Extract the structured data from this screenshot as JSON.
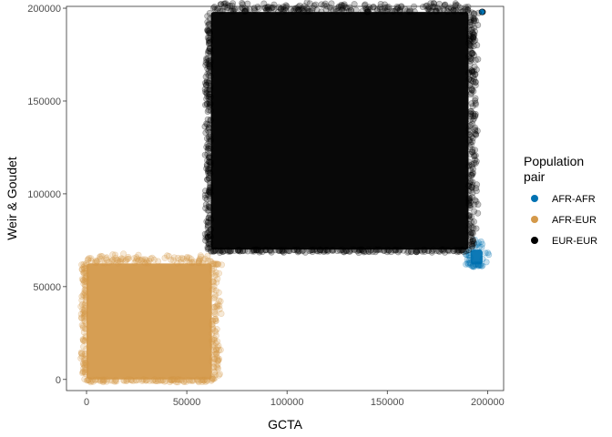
{
  "chart_data": {
    "type": "scatter",
    "title": "",
    "xlabel": "GCTA",
    "ylabel": "Weir & Goudet",
    "xlim": [
      -10000,
      208000
    ],
    "ylim": [
      -6000,
      201000
    ],
    "x_ticks": [
      0,
      50000,
      100000,
      150000,
      200000
    ],
    "y_ticks": [
      0,
      50000,
      100000,
      150000,
      200000
    ],
    "grid": false,
    "legend_position": "right",
    "legend_title": [
      "Population",
      "pair"
    ],
    "series": [
      {
        "name": "AFR-AFR",
        "color": "#0072B2",
        "regions": [
          {
            "x": [
              191500,
              197500
            ],
            "y": [
              62000,
              70000
            ]
          }
        ],
        "points": [
          {
            "x": 197500,
            "y": 198000
          },
          {
            "x": 197200,
            "y": 198000
          }
        ]
      },
      {
        "name": "AFR-EUR",
        "color": "#D4994A",
        "regions": [
          {
            "x": [
              0,
              62500
            ],
            "y": [
              0,
              62500
            ]
          }
        ]
      },
      {
        "name": "EUR-EUR",
        "color": "#000000",
        "regions": [
          {
            "x": [
              62000,
              190500
            ],
            "y": [
              70000,
              198000
            ]
          }
        ]
      }
    ]
  }
}
